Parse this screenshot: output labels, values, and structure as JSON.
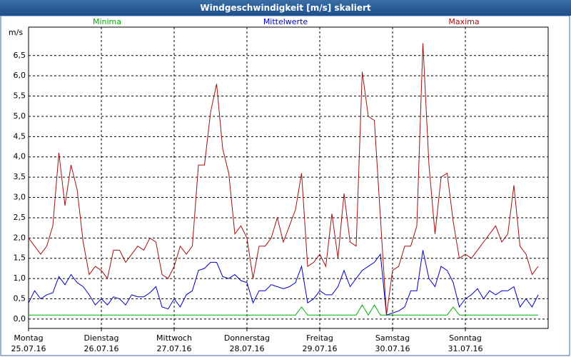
{
  "chart_data": {
    "type": "line",
    "title": "Windgeschwindigkeit [m/s] skaliert",
    "y_label": "m/s",
    "categories": [
      "Montag\n25.07.16",
      null,
      null,
      null,
      null,
      null,
      null,
      null,
      null,
      null,
      null,
      null,
      "Dienstag\n26.07.16",
      null,
      null,
      null,
      null,
      null,
      null,
      null,
      null,
      null,
      null,
      null,
      "Mittwoch\n27.07.16",
      null,
      null,
      null,
      null,
      null,
      null,
      null,
      null,
      null,
      null,
      null,
      "Donnerstag\n28.07.16",
      null,
      null,
      null,
      null,
      null,
      null,
      null,
      null,
      null,
      null,
      null,
      "Freitag\n29.07.16",
      null,
      null,
      null,
      null,
      null,
      null,
      null,
      null,
      null,
      null,
      null,
      "Samstag\n30.07.16",
      null,
      null,
      null,
      null,
      null,
      null,
      null,
      null,
      null,
      null,
      null,
      "Sonntag\n31.07.16",
      null,
      null,
      null,
      null,
      null,
      null,
      null,
      null,
      null,
      null,
      null,
      null
    ],
    "series": [
      {
        "name": "Minima",
        "color": "#00b000",
        "values": [
          0.1,
          0.1,
          0.1,
          0.1,
          0.1,
          0.1,
          0.1,
          0.1,
          0.1,
          0.1,
          0.1,
          0.1,
          0.1,
          0.1,
          0.1,
          0.1,
          0.1,
          0.1,
          0.1,
          0.1,
          0.1,
          0.1,
          0.1,
          0.1,
          0.1,
          0.1,
          0.1,
          0.1,
          0.1,
          0.1,
          0.1,
          0.1,
          0.1,
          0.1,
          0.1,
          0.1,
          0.1,
          0.1,
          0.1,
          0.1,
          0.1,
          0.1,
          0.1,
          0.1,
          0.1,
          0.3,
          0.1,
          0.1,
          0.1,
          0.1,
          0.1,
          0.1,
          0.1,
          0.1,
          0.1,
          0.35,
          0.1,
          0.35,
          0.1,
          0.1,
          0.1,
          0.1,
          0.1,
          0.1,
          0.1,
          0.1,
          0.1,
          0.1,
          0.1,
          0.1,
          0.3,
          0.1,
          0.1,
          0.1,
          0.1,
          0.1,
          0.1,
          0.1,
          0.1,
          0.1,
          0.1,
          0.1,
          0.1,
          0.1,
          0.1
        ]
      },
      {
        "name": "Mittelwerte",
        "color": "#0000c0",
        "values": [
          0.4,
          0.7,
          0.5,
          0.6,
          0.65,
          1.05,
          0.85,
          1.1,
          0.9,
          0.8,
          0.6,
          0.35,
          0.5,
          0.35,
          0.55,
          0.5,
          0.35,
          0.6,
          0.55,
          0.55,
          0.65,
          0.8,
          0.3,
          0.25,
          0.5,
          0.3,
          0.6,
          0.7,
          1.2,
          1.25,
          1.4,
          1.4,
          1.05,
          1.0,
          1.1,
          0.95,
          0.9,
          0.4,
          0.7,
          0.7,
          0.85,
          0.8,
          0.75,
          0.8,
          0.9,
          1.3,
          0.4,
          0.5,
          0.7,
          0.6,
          0.6,
          0.8,
          1.2,
          0.8,
          1.0,
          1.2,
          1.3,
          1.4,
          1.6,
          0.1,
          0.15,
          0.2,
          0.3,
          0.7,
          0.7,
          1.7,
          1.0,
          0.8,
          1.3,
          1.2,
          0.9,
          0.3,
          0.5,
          0.6,
          0.75,
          0.5,
          0.7,
          0.6,
          0.7,
          0.7,
          0.8,
          0.3,
          0.5,
          0.3,
          0.6
        ]
      },
      {
        "name": "Maxima",
        "color": "#a01010",
        "values": [
          2.0,
          1.8,
          1.6,
          1.8,
          2.3,
          4.1,
          2.8,
          3.8,
          3.2,
          1.9,
          1.1,
          1.3,
          1.2,
          1.0,
          1.7,
          1.7,
          1.4,
          1.6,
          1.8,
          1.7,
          2.0,
          1.9,
          1.1,
          1.0,
          1.3,
          1.8,
          1.6,
          1.8,
          3.8,
          3.8,
          5.1,
          5.8,
          4.2,
          3.6,
          2.1,
          2.3,
          2.0,
          1.0,
          1.8,
          1.8,
          2.0,
          2.5,
          1.9,
          2.3,
          2.7,
          3.6,
          1.3,
          1.4,
          1.6,
          1.3,
          2.6,
          1.5,
          3.1,
          1.9,
          1.8,
          6.1,
          5.0,
          4.9,
          2.5,
          0.1,
          1.2,
          1.3,
          1.8,
          1.8,
          2.3,
          6.8,
          3.8,
          2.1,
          3.5,
          3.6,
          2.4,
          1.5,
          1.6,
          1.5,
          1.7,
          1.9,
          2.1,
          2.3,
          1.9,
          2.1,
          3.3,
          1.8,
          1.6,
          1.1,
          1.3
        ]
      }
    ],
    "ylim": [
      -0.23,
      7.2
    ],
    "yticks": [
      {
        "value": 0,
        "label": "0,0"
      },
      {
        "value": 0.5,
        "label": "0,5"
      },
      {
        "value": 1,
        "label": "1,0"
      },
      {
        "value": 1.5,
        "label": "1,5"
      },
      {
        "value": 2,
        "label": "2,0"
      },
      {
        "value": 2.5,
        "label": "2,5"
      },
      {
        "value": 3,
        "label": "3,0"
      },
      {
        "value": 3.5,
        "label": "3,5"
      },
      {
        "value": 4,
        "label": "4,0"
      },
      {
        "value": 4.5,
        "label": "4,5"
      },
      {
        "value": 5,
        "label": "5,0"
      },
      {
        "value": 5.5,
        "label": "5,5"
      },
      {
        "value": 6,
        "label": "6,0"
      },
      {
        "value": 6.5,
        "label": "6,5"
      }
    ],
    "grid": true
  }
}
